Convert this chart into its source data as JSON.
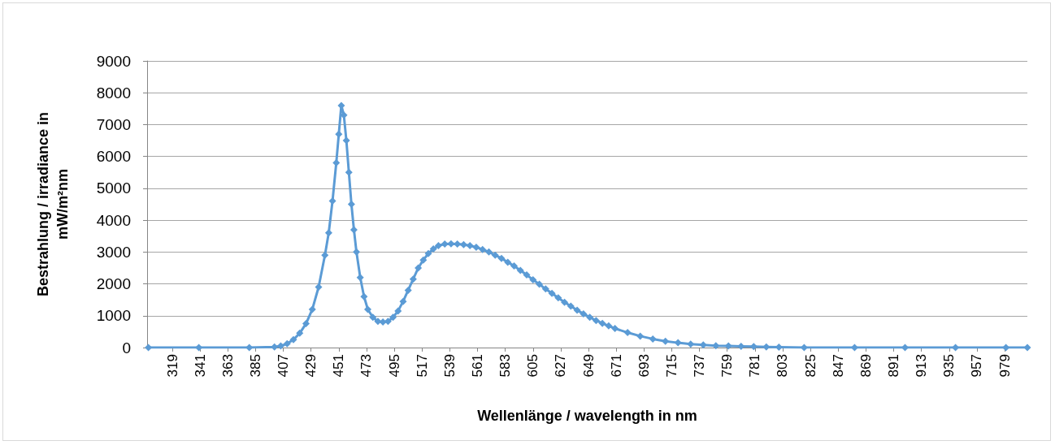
{
  "chart_data": {
    "type": "line",
    "xlabel": "Wellenlänge / wavelength in nm",
    "ylabel": "Bestrahlung / irradiance in mW/m²nm",
    "x": [
      300,
      340,
      380,
      400,
      405,
      410,
      415,
      420,
      425,
      430,
      435,
      440,
      443,
      446,
      449,
      451,
      453,
      455,
      457,
      459,
      461,
      463,
      465,
      468,
      471,
      474,
      478,
      482,
      486,
      490,
      494,
      498,
      502,
      506,
      510,
      514,
      518,
      522,
      526,
      530,
      535,
      540,
      545,
      550,
      555,
      560,
      565,
      570,
      575,
      580,
      585,
      590,
      595,
      600,
      605,
      610,
      615,
      620,
      625,
      630,
      635,
      640,
      645,
      650,
      655,
      660,
      665,
      670,
      680,
      690,
      700,
      710,
      720,
      730,
      740,
      750,
      760,
      770,
      780,
      790,
      800,
      820,
      860,
      900,
      940,
      980,
      997
    ],
    "series": [
      {
        "color": "#5b9bd5",
        "values": [
          0,
          0,
          0,
          20,
          50,
          120,
          250,
          450,
          750,
          1200,
          1900,
          2900,
          3600,
          4600,
          5800,
          6700,
          7600,
          7300,
          6500,
          5500,
          4500,
          3700,
          3000,
          2200,
          1600,
          1200,
          950,
          820,
          800,
          820,
          950,
          1150,
          1450,
          1800,
          2150,
          2500,
          2750,
          2950,
          3100,
          3200,
          3250,
          3260,
          3250,
          3230,
          3200,
          3150,
          3080,
          3000,
          2900,
          2800,
          2680,
          2560,
          2420,
          2280,
          2130,
          1990,
          1840,
          1700,
          1560,
          1420,
          1300,
          1170,
          1060,
          950,
          850,
          760,
          680,
          600,
          470,
          360,
          270,
          200,
          150,
          110,
          80,
          60,
          50,
          40,
          30,
          20,
          10,
          0,
          0,
          0,
          0,
          0,
          0
        ]
      }
    ],
    "xlim": [
      299,
      997
    ],
    "xticks": [
      319,
      341,
      363,
      385,
      407,
      429,
      451,
      473,
      495,
      517,
      539,
      561,
      583,
      605,
      627,
      649,
      671,
      693,
      715,
      737,
      759,
      781,
      803,
      825,
      847,
      869,
      891,
      913,
      935,
      957,
      979
    ],
    "ylim": [
      0,
      9000
    ],
    "yticks": [
      0,
      1000,
      2000,
      3000,
      4000,
      5000,
      6000,
      7000,
      8000,
      9000
    ],
    "grid": "y",
    "marker": "diamond",
    "line_style": "solid"
  }
}
